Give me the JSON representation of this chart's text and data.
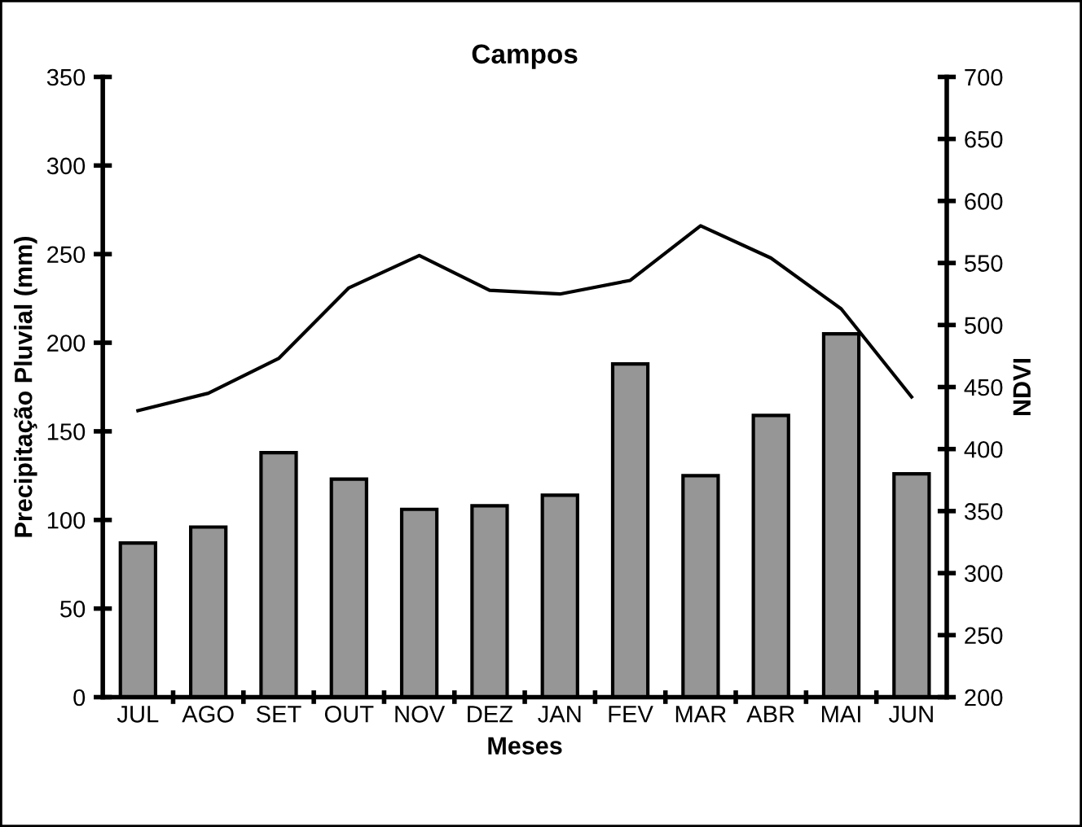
{
  "chart_data": {
    "type": "bar",
    "title": "Campos",
    "xlabel": "Meses",
    "ylabel": "Precipitação Pluvial (mm)",
    "y2label": "NDVI",
    "categories": [
      "JUL",
      "AGO",
      "SET",
      "OUT",
      "NOV",
      "DEZ",
      "JAN",
      "FEV",
      "MAR",
      "ABR",
      "MAI",
      "JUN"
    ],
    "series": [
      {
        "color": "#969696",
        "values": [
          87,
          96,
          138,
          123,
          106,
          108,
          114,
          188,
          125,
          159,
          205,
          126
        ]
      },
      {
        "type": "line",
        "axis": "y2",
        "color": "#000000",
        "values": [
          431,
          445,
          473,
          530,
          556,
          528,
          525,
          536,
          580,
          554,
          513,
          442
        ]
      }
    ],
    "ylim": [
      0,
      350
    ],
    "yticks": [
      0,
      50,
      100,
      150,
      200,
      250,
      300,
      350
    ],
    "y2lim": [
      200,
      700
    ],
    "y2ticks": [
      200,
      250,
      300,
      350,
      400,
      450,
      500,
      550,
      600,
      650,
      700
    ],
    "grid": false,
    "legend": false,
    "marker": "none",
    "line_style": "solid"
  }
}
